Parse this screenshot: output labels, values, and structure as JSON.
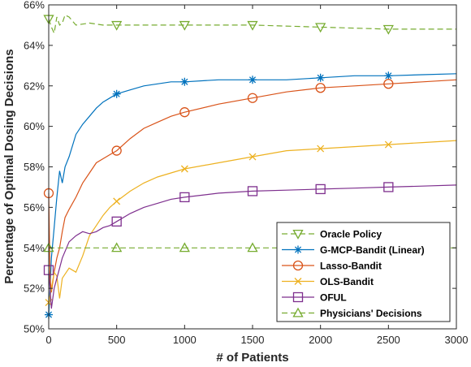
{
  "chart_data": {
    "type": "line",
    "xlabel": "# of Patients",
    "ylabel": "Percentage of Optimal Dosing Decisions",
    "xlim": [
      0,
      3000
    ],
    "ylim": [
      50,
      66
    ],
    "x_ticks": [
      0,
      500,
      1000,
      1500,
      2000,
      2500,
      3000
    ],
    "x_tick_labels": [
      "0",
      "500",
      "1000",
      "1500",
      "2000",
      "2500",
      "3000"
    ],
    "y_ticks": [
      50,
      52,
      54,
      56,
      58,
      60,
      62,
      64,
      66
    ],
    "y_tick_labels": [
      "50%",
      "52%",
      "54%",
      "56%",
      "58%",
      "60%",
      "62%",
      "64%",
      "66%"
    ],
    "grid": false,
    "legend_position": "bottom-right",
    "series": [
      {
        "name": "Oracle Policy",
        "color": "#77AC30",
        "line_style": "dashed",
        "marker": "triangle-down",
        "x": [
          0,
          20,
          40,
          60,
          80,
          100,
          120,
          150,
          200,
          300,
          400,
          500,
          750,
          1000,
          1500,
          2000,
          2500,
          3000
        ],
        "y": [
          65.3,
          64.9,
          64.6,
          65.4,
          65.0,
          65.1,
          65.5,
          65.4,
          65.0,
          65.1,
          65.0,
          65.0,
          65.0,
          65.0,
          65.0,
          64.9,
          64.8,
          64.8
        ],
        "marker_x": [
          0,
          500,
          1000,
          1500,
          2000,
          2500
        ],
        "marker_y": [
          65.3,
          65.0,
          65.0,
          65.0,
          64.9,
          64.8
        ]
      },
      {
        "name": "G-MCP-Bandit (Linear)",
        "color": "#0072BD",
        "line_style": "solid",
        "marker": "asterisk",
        "x": [
          0,
          10,
          20,
          40,
          60,
          80,
          100,
          120,
          150,
          200,
          250,
          300,
          350,
          400,
          450,
          500,
          600,
          700,
          800,
          900,
          1000,
          1250,
          1500,
          1750,
          2000,
          2250,
          2500,
          2750,
          3000
        ],
        "y": [
          50.7,
          52.0,
          53.5,
          55.0,
          56.5,
          57.8,
          57.2,
          58.0,
          58.5,
          59.6,
          60.1,
          60.5,
          60.9,
          61.2,
          61.4,
          61.6,
          61.8,
          62.0,
          62.1,
          62.2,
          62.2,
          62.3,
          62.3,
          62.3,
          62.4,
          62.5,
          62.5,
          62.55,
          62.6
        ],
        "marker_x": [
          0,
          500,
          1000,
          1500,
          2000,
          2500
        ],
        "marker_y": [
          50.7,
          61.6,
          62.2,
          62.3,
          62.4,
          62.5
        ]
      },
      {
        "name": "Lasso-Bandit",
        "color": "#D95319",
        "line_style": "solid",
        "marker": "circle",
        "x": [
          0,
          10,
          20,
          40,
          60,
          80,
          100,
          120,
          150,
          200,
          250,
          300,
          350,
          400,
          450,
          500,
          600,
          700,
          800,
          900,
          1000,
          1250,
          1500,
          1750,
          2000,
          2250,
          2500,
          2750,
          3000
        ],
        "y": [
          56.7,
          52.5,
          51.8,
          52.8,
          53.5,
          54.0,
          54.8,
          55.5,
          55.9,
          56.5,
          57.2,
          57.7,
          58.2,
          58.4,
          58.6,
          58.8,
          59.4,
          59.9,
          60.2,
          60.5,
          60.7,
          61.1,
          61.4,
          61.7,
          61.9,
          62.0,
          62.1,
          62.2,
          62.3
        ],
        "marker_x": [
          0,
          500,
          1000,
          1500,
          2000,
          2500
        ],
        "marker_y": [
          56.7,
          58.8,
          60.7,
          61.4,
          61.9,
          62.1
        ]
      },
      {
        "name": "OLS-Bandit",
        "color": "#EDB120",
        "line_style": "solid",
        "marker": "x",
        "x": [
          0,
          20,
          40,
          60,
          80,
          100,
          150,
          200,
          250,
          300,
          350,
          400,
          450,
          500,
          600,
          700,
          800,
          900,
          1000,
          1250,
          1500,
          1750,
          2000,
          2250,
          2500,
          2750,
          3000
        ],
        "y": [
          51.3,
          52.0,
          52.8,
          52.6,
          51.5,
          52.5,
          53.0,
          52.8,
          53.6,
          54.6,
          55.1,
          55.6,
          56.0,
          56.3,
          56.8,
          57.2,
          57.5,
          57.7,
          57.9,
          58.2,
          58.5,
          58.8,
          58.9,
          59.0,
          59.1,
          59.2,
          59.3
        ],
        "marker_x": [
          0,
          500,
          1000,
          1500,
          2000,
          2500
        ],
        "marker_y": [
          51.3,
          56.3,
          57.9,
          58.5,
          58.9,
          59.1
        ]
      },
      {
        "name": "OFUL",
        "color": "#7E2F8E",
        "line_style": "solid",
        "marker": "square",
        "x": [
          0,
          20,
          40,
          60,
          80,
          100,
          150,
          200,
          250,
          300,
          350,
          400,
          450,
          500,
          600,
          700,
          800,
          900,
          1000,
          1250,
          1500,
          1750,
          2000,
          2250,
          2500,
          2750,
          3000
        ],
        "y": [
          52.9,
          51.0,
          52.0,
          52.5,
          53.0,
          53.5,
          54.3,
          54.6,
          54.8,
          54.7,
          54.8,
          55.0,
          55.1,
          55.3,
          55.7,
          56.0,
          56.2,
          56.4,
          56.5,
          56.7,
          56.8,
          56.85,
          56.9,
          56.95,
          57.0,
          57.05,
          57.1
        ],
        "marker_x": [
          0,
          500,
          1000,
          1500,
          2000,
          2500
        ],
        "marker_y": [
          52.9,
          55.3,
          56.5,
          56.8,
          56.9,
          57.0
        ]
      },
      {
        "name": "Physicians' Decisions",
        "color": "#77AC30",
        "line_style": "dashed",
        "marker": "triangle-up",
        "x": [
          0,
          3000
        ],
        "y": [
          54.0,
          54.0
        ],
        "marker_x": [
          0,
          500,
          1000,
          1500
        ],
        "marker_y": [
          54.0,
          54.0,
          54.0,
          54.0
        ]
      }
    ]
  }
}
